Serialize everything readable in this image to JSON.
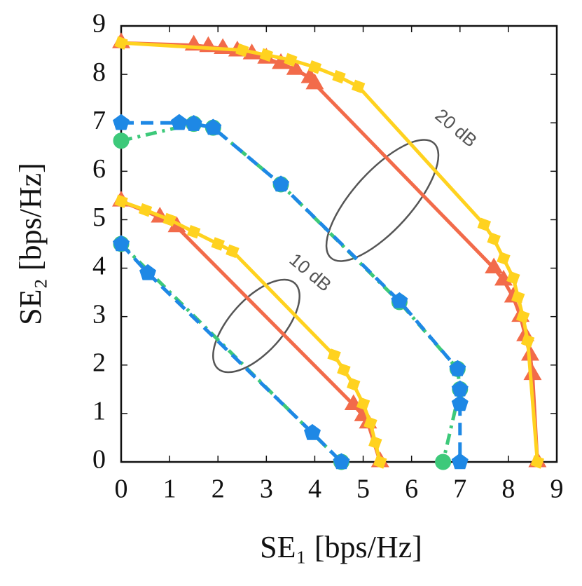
{
  "chart_data": {
    "type": "line",
    "xlabel": "SE₁ [bps/Hz]",
    "ylabel": "SE₂ [bps/Hz]",
    "xlim": [
      0,
      9
    ],
    "ylim": [
      0,
      9
    ],
    "xticks": [
      0,
      1,
      2,
      3,
      4,
      5,
      6,
      7,
      8,
      9
    ],
    "yticks": [
      0,
      1,
      2,
      3,
      4,
      5,
      6,
      7,
      8,
      9
    ],
    "annotations": [
      "20 dB",
      "10 dB"
    ],
    "series": [
      {
        "color": "#f26b4a",
        "marker": "triangle",
        "dash": "solid",
        "x": [
          0,
          1.5,
          1.8,
          2.1,
          2.4,
          2.7,
          3.0,
          3.3,
          3.6,
          3.9,
          4.0,
          7.7,
          7.9,
          8.1,
          8.25,
          8.35,
          8.45,
          8.5,
          8.6
        ],
        "values": [
          8.65,
          8.6,
          8.57,
          8.53,
          8.48,
          8.42,
          8.33,
          8.22,
          8.1,
          7.93,
          7.8,
          4.0,
          3.75,
          3.4,
          3.0,
          2.6,
          2.2,
          1.8,
          0
        ]
      },
      {
        "color": "#ffd21f",
        "marker": "square",
        "dash": "solid",
        "x": [
          0,
          2.5,
          3.0,
          3.5,
          4.0,
          4.5,
          4.9,
          7.5,
          7.7,
          7.9,
          8.1,
          8.2,
          8.3,
          8.4,
          8.6
        ],
        "values": [
          8.65,
          8.5,
          8.4,
          8.3,
          8.15,
          7.95,
          7.75,
          4.9,
          4.6,
          4.2,
          3.8,
          3.4,
          3.0,
          2.5,
          0
        ]
      },
      {
        "color": "#3dc97a",
        "marker": "circle",
        "dash": "dashdot",
        "x": [
          0,
          1.5,
          1.9,
          3.3,
          5.75,
          6.95,
          7.0,
          6.65
        ],
        "values": [
          6.63,
          6.98,
          6.9,
          5.73,
          3.3,
          1.92,
          1.5,
          0
        ]
      },
      {
        "color": "#1e88e5",
        "marker": "pentagon",
        "dash": "dashed",
        "x": [
          0,
          1.2,
          1.5,
          1.9,
          3.3,
          5.75,
          6.95,
          7.0,
          7.0,
          7.0
        ],
        "values": [
          7.0,
          7.0,
          6.98,
          6.9,
          5.73,
          3.32,
          1.92,
          1.5,
          1.2,
          0
        ]
      },
      {
        "color": "#f26b4a",
        "marker": "triangle",
        "dash": "solid",
        "x": [
          0,
          0.8,
          1.15,
          4.8,
          5.0,
          5.1,
          5.35
        ],
        "values": [
          5.38,
          5.05,
          4.85,
          1.18,
          0.95,
          0.8,
          0
        ]
      },
      {
        "color": "#ffd21f",
        "marker": "square",
        "dash": "solid",
        "x": [
          0,
          0.5,
          1.0,
          1.5,
          2.0,
          2.3,
          4.4,
          4.6,
          4.8,
          5.0,
          5.15,
          5.25,
          5.35
        ],
        "values": [
          5.38,
          5.2,
          5.0,
          4.75,
          4.5,
          4.35,
          2.2,
          1.9,
          1.6,
          1.2,
          0.8,
          0.4,
          0
        ]
      },
      {
        "color": "#3dc97a",
        "marker": "circle",
        "dash": "dashdot",
        "x": [
          0,
          4.55
        ],
        "values": [
          4.5,
          0
        ]
      },
      {
        "color": "#1e88e5",
        "marker": "pentagon",
        "dash": "dashed",
        "x": [
          0,
          0.55,
          3.95,
          4.55
        ],
        "values": [
          4.5,
          3.9,
          0.6,
          0
        ]
      }
    ]
  }
}
